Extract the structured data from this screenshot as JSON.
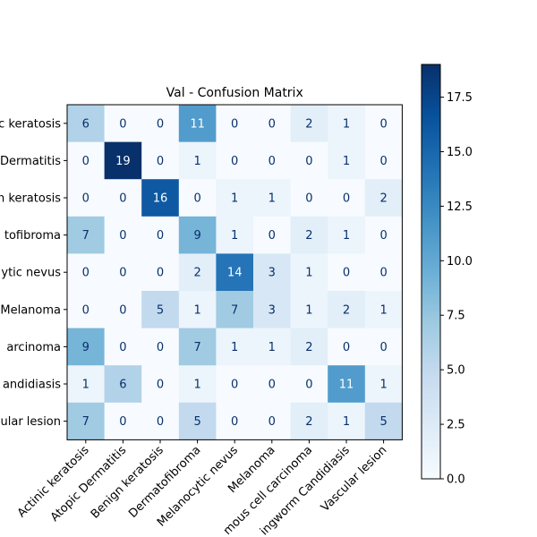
{
  "chart_data": {
    "type": "heatmap",
    "title": "Val - Confusion Matrix",
    "xlabel": "",
    "ylabel": "",
    "row_tick_labels": [
      "c keratosis",
      "Dermatitis",
      "n keratosis",
      "tofibroma",
      "ytic nevus",
      "Melanoma",
      "arcinoma",
      "andidiasis",
      "ular lesion"
    ],
    "col_tick_labels": [
      "Actinic keratosis",
      "Atopic Dermatitis",
      "Benign keratosis",
      "Dermatofibroma",
      "Melanocytic nevus",
      "Melanoma",
      "mous cell carcinoma",
      "ingworm Candidiasis",
      "Vascular lesion"
    ],
    "values": [
      [
        6,
        0,
        0,
        11,
        0,
        0,
        2,
        1,
        0
      ],
      [
        0,
        19,
        0,
        1,
        0,
        0,
        0,
        1,
        0
      ],
      [
        0,
        0,
        16,
        0,
        1,
        1,
        0,
        0,
        2
      ],
      [
        7,
        0,
        0,
        9,
        1,
        0,
        2,
        1,
        0
      ],
      [
        0,
        0,
        0,
        2,
        14,
        3,
        1,
        0,
        0
      ],
      [
        0,
        0,
        5,
        1,
        7,
        3,
        1,
        2,
        1
      ],
      [
        9,
        0,
        0,
        7,
        1,
        1,
        2,
        0,
        0
      ],
      [
        1,
        6,
        0,
        1,
        0,
        0,
        0,
        11,
        1
      ],
      [
        7,
        0,
        0,
        5,
        0,
        0,
        2,
        1,
        5
      ]
    ],
    "vmin": 0,
    "vmax": 19,
    "colormap": "Blues",
    "colorbar_ticks": [
      "0.0",
      "2.5",
      "5.0",
      "7.5",
      "10.0",
      "12.5",
      "15.0",
      "17.5"
    ],
    "grid": false
  }
}
